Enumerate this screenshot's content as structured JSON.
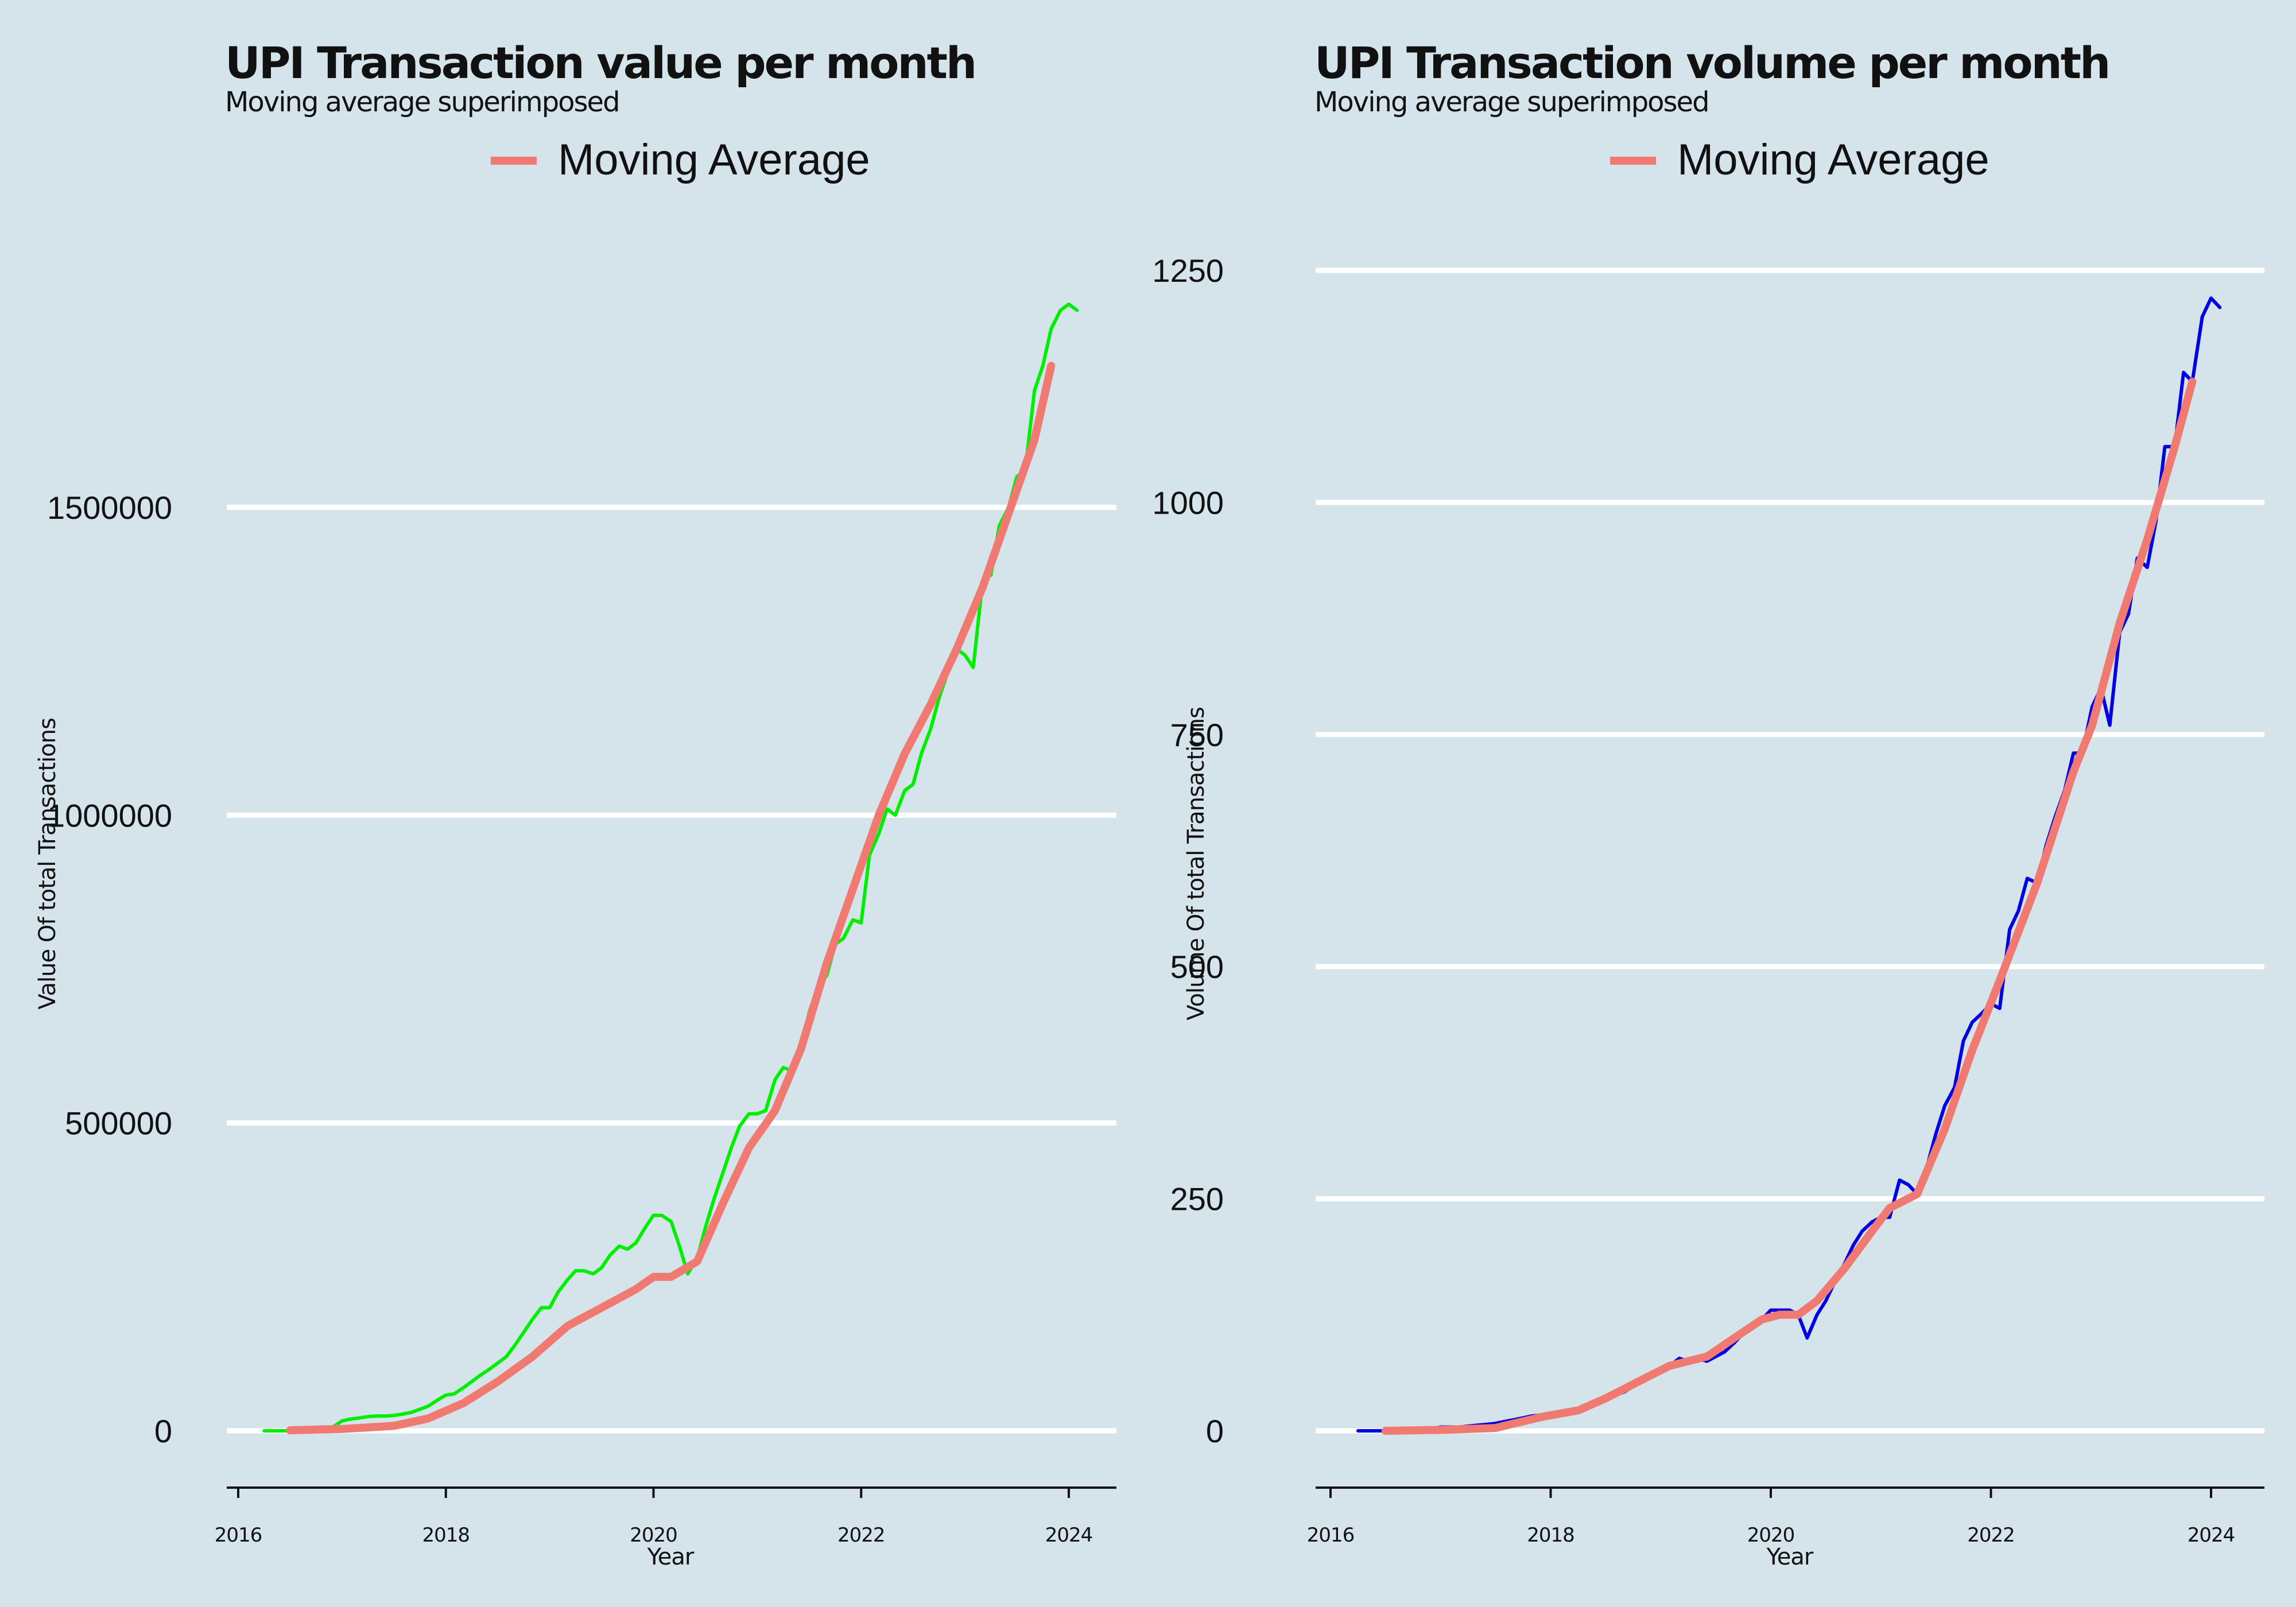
{
  "chart_data": [
    {
      "type": "line",
      "title": "UPI Transaction value per month",
      "subtitle": "Moving average superimposed",
      "xlabel": "Year",
      "ylabel": "Value Of total Transactions",
      "legend": {
        "entries": [
          "Moving Average"
        ],
        "placement": "top"
      },
      "grid": {
        "horizontal": true,
        "vertical": false
      },
      "xlim": [
        2016,
        2024.5
      ],
      "ylim": [
        -90000,
        1900000
      ],
      "x_ticks": [
        2016,
        2018,
        2020,
        2022,
        2024
      ],
      "y_ticks": [
        0,
        500000,
        1000000,
        1500000
      ],
      "colors": {
        "raw": "#00ee00",
        "moving_average": "#f07a72"
      },
      "series": [
        {
          "role": "raw",
          "x": [
            2016.25,
            2016.33,
            2016.42,
            2016.5,
            2016.58,
            2016.67,
            2016.75,
            2016.83,
            2016.92,
            2017.0,
            2017.08,
            2017.17,
            2017.25,
            2017.33,
            2017.42,
            2017.5,
            2017.58,
            2017.67,
            2017.75,
            2017.83,
            2017.92,
            2018.0,
            2018.08,
            2018.17,
            2018.25,
            2018.33,
            2018.42,
            2018.5,
            2018.58,
            2018.67,
            2018.75,
            2018.83,
            2018.92,
            2019.0,
            2019.08,
            2019.17,
            2019.25,
            2019.33,
            2019.42,
            2019.5,
            2019.58,
            2019.67,
            2019.75,
            2019.83,
            2019.92,
            2020.0,
            2020.08,
            2020.17,
            2020.25,
            2020.33,
            2020.42,
            2020.5,
            2020.58,
            2020.67,
            2020.75,
            2020.83,
            2020.92,
            2021.0,
            2021.08,
            2021.17,
            2021.25,
            2021.33,
            2021.42,
            2021.5,
            2021.58,
            2021.67,
            2021.75,
            2021.83,
            2021.92,
            2022.0,
            2022.08,
            2022.17,
            2022.25,
            2022.33,
            2022.42,
            2022.5,
            2022.58,
            2022.67,
            2022.75,
            2022.83,
            2022.92,
            2023.0,
            2023.08,
            2023.17,
            2023.25,
            2023.33,
            2023.42,
            2023.5,
            2023.58,
            2023.67,
            2023.75,
            2023.83,
            2023.92,
            2024.0,
            2024.08
          ],
          "values": [
            0,
            0,
            0,
            30,
            100,
            200,
            700,
            2000,
            7000,
            16000,
            19000,
            21000,
            23000,
            24000,
            24000,
            25000,
            27000,
            30000,
            35000,
            40000,
            50000,
            58000,
            60000,
            70000,
            80000,
            90000,
            100000,
            110000,
            120000,
            140000,
            160000,
            180000,
            200000,
            200000,
            225000,
            245000,
            260000,
            260000,
            255000,
            265000,
            285000,
            300000,
            295000,
            305000,
            330000,
            350000,
            350000,
            340000,
            300000,
            255000,
            280000,
            330000,
            375000,
            420000,
            460000,
            495000,
            515000,
            515000,
            520000,
            570000,
            590000,
            585000,
            620000,
            680000,
            720000,
            740000,
            790000,
            800000,
            830000,
            825000,
            935000,
            970000,
            1010000,
            1000000,
            1040000,
            1050000,
            1100000,
            1140000,
            1190000,
            1230000,
            1270000,
            1260000,
            1240000,
            1380000,
            1390000,
            1470000,
            1500000,
            1550000,
            1560000,
            1690000,
            1730000,
            1790000,
            1820000,
            1830000,
            1820000
          ]
        },
        {
          "role": "moving_average",
          "name": "Moving Average",
          "x": [
            2016.5,
            2017.0,
            2017.5,
            2017.83,
            2018.17,
            2018.5,
            2018.83,
            2019.17,
            2019.5,
            2019.83,
            2020.0,
            2020.17,
            2020.42,
            2020.67,
            2020.92,
            2021.17,
            2021.42,
            2021.67,
            2021.92,
            2022.17,
            2022.42,
            2022.67,
            2022.92,
            2023.17,
            2023.42,
            2023.67,
            2023.83
          ],
          "values": [
            800,
            3000,
            8000,
            20000,
            45000,
            80000,
            120000,
            170000,
            200000,
            230000,
            250000,
            250000,
            275000,
            370000,
            460000,
            520000,
            620000,
            760000,
            880000,
            1000000,
            1100000,
            1180000,
            1270000,
            1370000,
            1490000,
            1610000,
            1730000
          ]
        }
      ]
    },
    {
      "type": "line",
      "title": "UPI Transaction volume per month",
      "subtitle": "Moving average superimposed",
      "xlabel": "Year",
      "ylabel": "Volume Of total Transactions",
      "legend": {
        "entries": [
          "Moving Average"
        ],
        "placement": "top"
      },
      "grid": {
        "horizontal": true,
        "vertical": false
      },
      "xlim": [
        2016,
        2024.5
      ],
      "ylim": [
        -60,
        1300
      ],
      "x_ticks": [
        2016,
        2018,
        2020,
        2022,
        2024
      ],
      "y_ticks": [
        0,
        250,
        500,
        750,
        1000,
        1250
      ],
      "colors": {
        "raw": "#0000e0",
        "moving_average": "#f07a72"
      },
      "series": [
        {
          "role": "raw",
          "x": [
            2016.25,
            2016.33,
            2016.42,
            2016.5,
            2016.58,
            2016.67,
            2016.75,
            2016.83,
            2016.92,
            2017.0,
            2017.08,
            2017.17,
            2017.25,
            2017.33,
            2017.42,
            2017.5,
            2017.58,
            2017.67,
            2017.75,
            2017.83,
            2017.92,
            2018.0,
            2018.08,
            2018.17,
            2018.25,
            2018.33,
            2018.42,
            2018.5,
            2018.58,
            2018.67,
            2018.75,
            2018.83,
            2018.92,
            2019.0,
            2019.08,
            2019.17,
            2019.25,
            2019.33,
            2019.42,
            2019.5,
            2019.58,
            2019.67,
            2019.75,
            2019.83,
            2019.92,
            2020.0,
            2020.08,
            2020.17,
            2020.25,
            2020.33,
            2020.42,
            2020.5,
            2020.58,
            2020.67,
            2020.75,
            2020.83,
            2020.92,
            2021.0,
            2021.08,
            2021.17,
            2021.25,
            2021.33,
            2021.42,
            2021.5,
            2021.58,
            2021.67,
            2021.75,
            2021.83,
            2021.92,
            2022.0,
            2022.08,
            2022.17,
            2022.25,
            2022.33,
            2022.42,
            2022.5,
            2022.58,
            2022.67,
            2022.75,
            2022.83,
            2022.92,
            2023.0,
            2023.08,
            2023.17,
            2023.25,
            2023.33,
            2023.42,
            2023.5,
            2023.58,
            2023.67,
            2023.75,
            2023.83,
            2023.92,
            2024.0,
            2024.08
          ],
          "values": [
            0,
            0,
            0,
            0,
            0,
            0,
            0.3,
            1,
            2,
            4,
            4,
            4,
            5,
            6,
            7,
            8,
            10,
            12,
            14,
            16,
            17,
            18,
            19,
            20,
            22,
            24,
            30,
            34,
            38,
            42,
            48,
            55,
            60,
            65,
            70,
            78,
            75,
            78,
            75,
            80,
            85,
            95,
            105,
            115,
            120,
            130,
            130,
            130,
            125,
            100,
            125,
            140,
            160,
            180,
            200,
            215,
            225,
            230,
            230,
            270,
            265,
            255,
            285,
            320,
            350,
            370,
            420,
            440,
            450,
            460,
            455,
            540,
            560,
            595,
            590,
            630,
            660,
            690,
            730,
            730,
            780,
            800,
            760,
            860,
            880,
            940,
            930,
            980,
            1060,
            1060,
            1140,
            1130,
            1200,
            1220,
            1210
          ]
        },
        {
          "role": "moving_average",
          "name": "Moving Average",
          "x": [
            2016.5,
            2017.0,
            2017.5,
            2017.67,
            2017.92,
            2018.25,
            2018.5,
            2018.83,
            2019.08,
            2019.42,
            2019.67,
            2019.92,
            2020.08,
            2020.25,
            2020.42,
            2020.67,
            2020.92,
            2021.08,
            2021.33,
            2021.58,
            2021.83,
            2022.08,
            2022.42,
            2022.75,
            2022.92,
            2023.17,
            2023.42,
            2023.67,
            2023.83
          ],
          "values": [
            0,
            1,
            3,
            8,
            15,
            22,
            35,
            55,
            70,
            80,
            100,
            120,
            125,
            125,
            140,
            175,
            215,
            240,
            255,
            325,
            410,
            485,
            590,
            710,
            760,
            870,
            960,
            1060,
            1130
          ]
        }
      ]
    }
  ]
}
